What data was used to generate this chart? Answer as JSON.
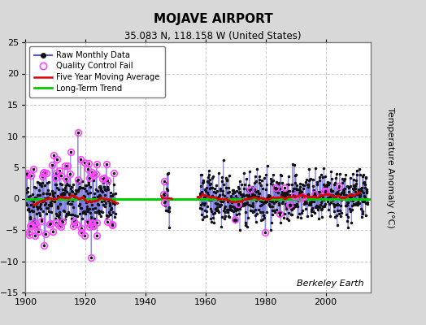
{
  "title": "MOJAVE AIRPORT",
  "subtitle": "35.083 N, 118.158 W (United States)",
  "ylabel": "Temperature Anomaly (°C)",
  "watermark": "Berkeley Earth",
  "xlim": [
    1900,
    2015
  ],
  "ylim": [
    -15,
    25
  ],
  "yticks": [
    -15,
    -10,
    -5,
    0,
    5,
    10,
    15,
    20,
    25
  ],
  "xticks": [
    1900,
    1920,
    1940,
    1960,
    1980,
    2000
  ],
  "fig_bg_color": "#d8d8d8",
  "plot_bg_color": "#ffffff",
  "raw_line_color": "#5555dd",
  "raw_marker_color": "#111111",
  "qc_fail_color": "#ff44ff",
  "moving_avg_color": "#dd0000",
  "trend_color": "#00cc00",
  "grid_color": "#cccccc",
  "legend_labels": [
    "Raw Monthly Data",
    "Quality Control Fail",
    "Five Year Moving Average",
    "Long-Term Trend"
  ],
  "seed": 42,
  "data_segments": [
    {
      "start": 1900,
      "end": 1929
    },
    {
      "start": 1946,
      "end": 1947
    },
    {
      "start": 1958,
      "end": 2013
    }
  ],
  "data_start": 1900,
  "data_end": 2013
}
